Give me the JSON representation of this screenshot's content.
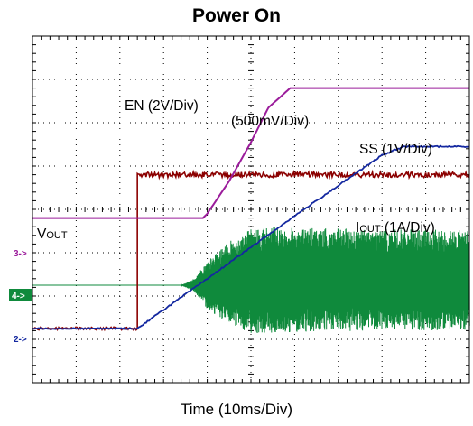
{
  "chart_data": {
    "type": "line",
    "title": "Power On",
    "xlabel": "Time (10ms/Div)",
    "ylabel": "",
    "x_divisions": 10,
    "y_divisions": 8,
    "grid": true,
    "colors": {
      "EN": "#8b0000",
      "VOUT": "#9b1c9b",
      "SS": "#1428a0",
      "IOUT": "#0f8a3c"
    },
    "annotations": [
      {
        "id": "en",
        "text": "EN (2V/Div)"
      },
      {
        "id": "vout_scale",
        "text": "(500mV/Div)"
      },
      {
        "id": "ss",
        "text": "SS  (1V/Div)"
      },
      {
        "id": "vout_main",
        "text": "V",
        "sub": "OUT"
      },
      {
        "id": "iout_main",
        "text": "I",
        "sub": "OUT",
        "rest": " (1A/Div)"
      }
    ],
    "channel_markers": [
      {
        "id": "3",
        "text": "3->"
      },
      {
        "id": "4",
        "text": "4->"
      },
      {
        "id": "2",
        "text": "2->"
      }
    ],
    "series": [
      {
        "name": "EN (2V/Div)",
        "unit_per_div": 2,
        "x_div": [
          0,
          2.4,
          2.4,
          10
        ],
        "y_div": [
          0.0,
          0.0,
          3.55,
          3.55
        ],
        "noisy": true
      },
      {
        "name": "VOUT (500mV/Div)",
        "unit_per_div": 0.5,
        "x_div": [
          0,
          3.9,
          4.0,
          4.5,
          5.0,
          5.4,
          5.9,
          10
        ],
        "y_div": [
          2.55,
          2.55,
          2.65,
          3.4,
          4.3,
          5.1,
          5.55,
          5.55
        ]
      },
      {
        "name": "SS (1V/Div)",
        "unit_per_div": 1,
        "x_div": [
          0,
          2.4,
          4.0,
          6.0,
          8.0,
          8.5,
          10
        ],
        "y_div": [
          0.0,
          0.0,
          1.15,
          2.6,
          4.0,
          4.2,
          4.2
        ]
      },
      {
        "name": "IOUT (1A/Div)",
        "unit_per_div": 1,
        "x_div": [
          0,
          3.4,
          3.7,
          4.0,
          4.5,
          5.0,
          5.6,
          6.0,
          10
        ],
        "y_div": [
          1.0,
          1.0,
          1.0,
          1.0,
          1.0,
          1.0,
          1.0,
          1.0,
          1.0
        ],
        "ripple_div": [
          0,
          0,
          0.15,
          0.55,
          0.95,
          1.2,
          1.25,
          1.2,
          1.15
        ],
        "ripple_offset_div": [
          0,
          0,
          0,
          0,
          0.05,
          0.1,
          0.12,
          0.12,
          0.12
        ]
      }
    ]
  }
}
